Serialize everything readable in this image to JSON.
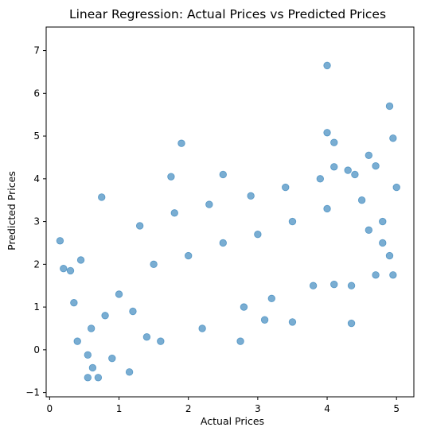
{
  "chart_data": {
    "type": "scatter",
    "title": "Linear Regression: Actual Prices vs Predicted Prices",
    "xlabel": "Actual Prices",
    "ylabel": "Predicted Prices",
    "xlim": [
      -0.05,
      5.25
    ],
    "ylim": [
      -1.1,
      7.55
    ],
    "xticks": [
      0,
      1,
      2,
      3,
      4,
      5
    ],
    "yticks": [
      -1,
      0,
      1,
      2,
      3,
      4,
      5,
      6,
      7
    ],
    "grid": false,
    "marker_color": "#1f77b4",
    "marker_alpha": 0.6,
    "series": [
      {
        "values": [
          {
            "x": 0.15,
            "y": 2.55
          },
          {
            "x": 0.2,
            "y": 1.9
          },
          {
            "x": 0.3,
            "y": 1.85
          },
          {
            "x": 0.35,
            "y": 1.1
          },
          {
            "x": 0.4,
            "y": 0.2
          },
          {
            "x": 0.45,
            "y": 2.1
          },
          {
            "x": 0.55,
            "y": -0.12
          },
          {
            "x": 0.55,
            "y": -0.65
          },
          {
            "x": 0.7,
            "y": -0.65
          },
          {
            "x": 0.62,
            "y": -0.42
          },
          {
            "x": 0.75,
            "y": 3.57
          },
          {
            "x": 0.9,
            "y": -0.2
          },
          {
            "x": 1.15,
            "y": -0.52
          },
          {
            "x": 1.9,
            "y": 4.83
          },
          {
            "x": 1.75,
            "y": 4.05
          },
          {
            "x": 2.5,
            "y": 4.1
          },
          {
            "x": 2.75,
            "y": 0.2
          },
          {
            "x": 3.1,
            "y": 0.7
          },
          {
            "x": 3.5,
            "y": 0.65
          },
          {
            "x": 4.35,
            "y": 0.62
          },
          {
            "x": 4.0,
            "y": 6.65
          },
          {
            "x": 4.0,
            "y": 5.08
          },
          {
            "x": 4.1,
            "y": 4.85
          },
          {
            "x": 4.1,
            "y": 4.28
          },
          {
            "x": 4.3,
            "y": 4.2
          },
          {
            "x": 4.6,
            "y": 4.55
          },
          {
            "x": 4.9,
            "y": 5.7
          },
          {
            "x": 4.95,
            "y": 4.95
          },
          {
            "x": 4.9,
            "y": 2.2
          },
          {
            "x": 4.95,
            "y": 1.75
          },
          {
            "x": 4.7,
            "y": 1.75
          },
          {
            "x": 4.1,
            "y": 1.53
          },
          {
            "x": 4.35,
            "y": 1.5
          },
          {
            "x": 1.0,
            "y": 1.3
          },
          {
            "x": 1.5,
            "y": 2.0
          },
          {
            "x": 2.0,
            "y": 2.2
          },
          {
            "x": 2.5,
            "y": 2.5
          },
          {
            "x": 3.0,
            "y": 2.7
          },
          {
            "x": 3.5,
            "y": 3.0
          },
          {
            "x": 4.0,
            "y": 3.3
          },
          {
            "x": 4.5,
            "y": 3.5
          },
          {
            "x": 5.0,
            "y": 3.8
          },
          {
            "x": 0.6,
            "y": 0.5
          },
          {
            "x": 0.8,
            "y": 0.8
          },
          {
            "x": 1.2,
            "y": 0.9
          },
          {
            "x": 1.4,
            "y": 0.3
          },
          {
            "x": 1.6,
            "y": 0.2
          },
          {
            "x": 2.2,
            "y": 0.5
          },
          {
            "x": 2.8,
            "y": 1.0
          },
          {
            "x": 3.2,
            "y": 1.2
          },
          {
            "x": 3.8,
            "y": 1.5
          },
          {
            "x": 1.3,
            "y": 2.9
          },
          {
            "x": 1.8,
            "y": 3.2
          },
          {
            "x": 2.3,
            "y": 3.4
          },
          {
            "x": 2.9,
            "y": 3.6
          },
          {
            "x": 3.4,
            "y": 3.8
          },
          {
            "x": 3.9,
            "y": 4.0
          },
          {
            "x": 4.4,
            "y": 4.1
          },
          {
            "x": 4.7,
            "y": 4.3
          },
          {
            "x": 4.8,
            "y": 3.0
          },
          {
            "x": 4.8,
            "y": 2.5
          },
          {
            "x": 4.6,
            "y": 2.8
          }
        ]
      }
    ]
  }
}
